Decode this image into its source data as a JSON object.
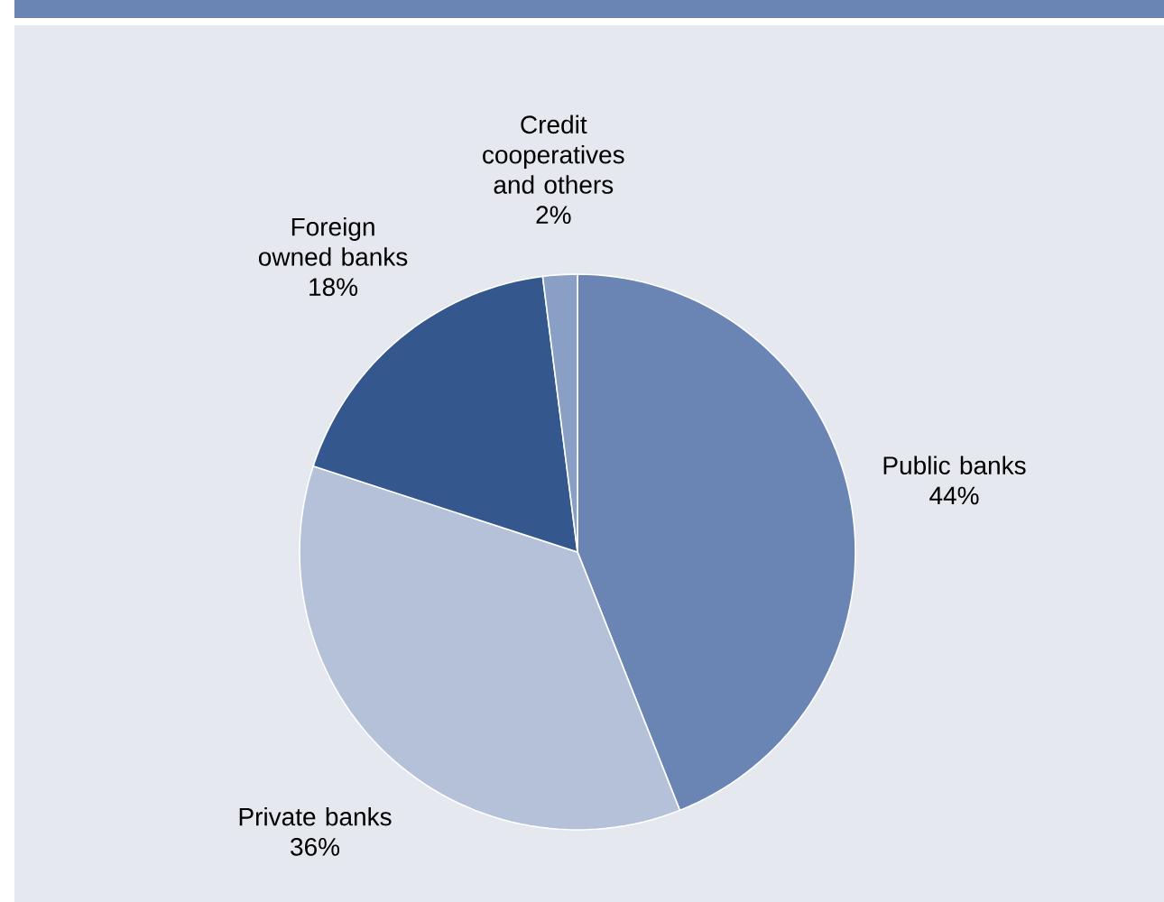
{
  "chart_data": {
    "type": "pie",
    "categories": [
      "Public banks",
      "Private banks",
      "Foreign owned banks",
      "Credit cooperatives and others"
    ],
    "values": [
      44,
      36,
      18,
      2
    ],
    "value_labels": [
      "44%",
      "36%",
      "18%",
      "2%"
    ],
    "colors": [
      "#6a84b4",
      "#b4c1d9",
      "#34578e",
      "#8a9fc6"
    ]
  }
}
